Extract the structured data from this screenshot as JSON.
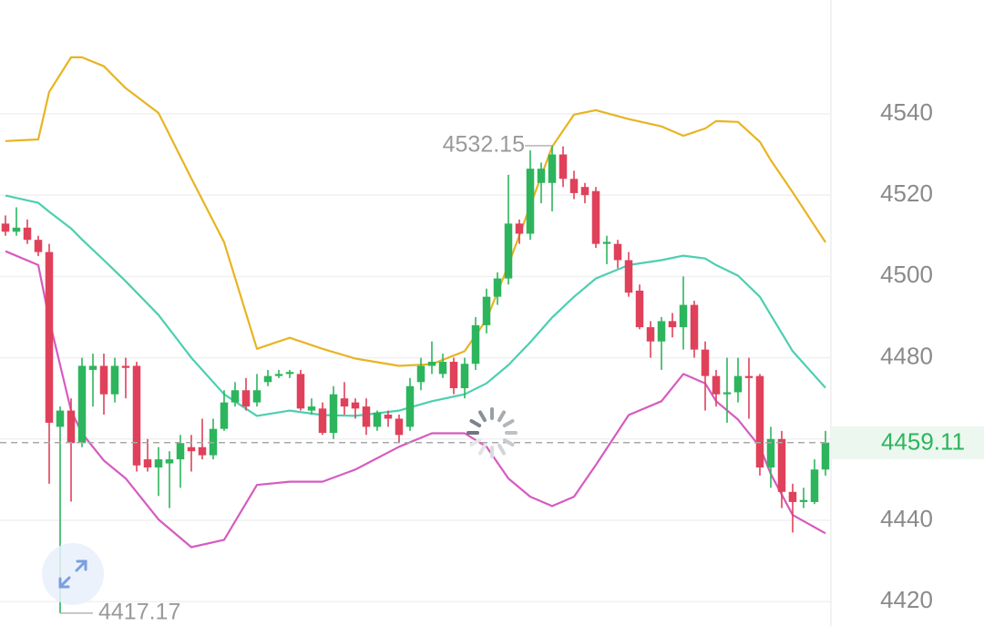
{
  "chart_data": {
    "type": "candlestick",
    "xlim": [
      -0.5,
      75.5
    ],
    "ylim": [
      4414,
      4568
    ],
    "yticks": [
      4420,
      4440,
      4460,
      4480,
      4500,
      4520,
      4540
    ],
    "grid": true,
    "up_color": "#2db55d",
    "down_color": "#e0415a",
    "open": [
      4513,
      4511,
      4512,
      4509,
      4506,
      4463,
      4467,
      4459,
      4477,
      4478,
      4471,
      4478,
      4478,
      4455,
      4453,
      4454,
      4455,
      4458,
      4458,
      4456,
      4462.5,
      4469,
      4472,
      4469,
      4474,
      4475.5,
      4476,
      4476,
      4467,
      4467.5,
      4461.5,
      4470,
      4469,
      4468,
      4463,
      4466,
      4465,
      4463,
      4474,
      4478,
      4476,
      4479,
      4472.5,
      4478.5,
      4488,
      4495,
      4499.5,
      4513,
      4510.5,
      4523,
      4523,
      4530,
      4524,
      4522,
      4521,
      4508,
      4508,
      4504,
      4496.5,
      4487.5,
      4484,
      4489,
      4487.5,
      4493,
      4482,
      4475.5,
      4471,
      4471.5,
      4475.5,
      4475.5,
      4453,
      4460,
      4447,
      4444.5,
      4444.5,
      4452.5
    ],
    "high": [
      4515,
      4517,
      4514,
      4510,
      4508,
      4468,
      4470,
      4480,
      4481,
      4481,
      4480,
      4480,
      4479,
      4460,
      4458,
      4457,
      4461,
      4461,
      4465,
      4465,
      4472,
      4474,
      4475,
      4476,
      4477,
      4477,
      4477,
      4477,
      4470,
      4469,
      4473,
      4474,
      4470,
      4470,
      4467,
      4467,
      4466,
      4475,
      4480,
      4484,
      4481,
      4480,
      4480,
      4490,
      4497,
      4501,
      4525,
      4514,
      4531,
      4528,
      4532.15,
      4532,
      4526,
      4523,
      4522,
      4510,
      4509,
      4506,
      4498,
      4489,
      4490,
      4491,
      4500,
      4494,
      4484,
      4477,
      4480,
      4480,
      4480,
      4476,
      4463,
      4462,
      4449,
      4448,
      4455,
      4462
    ],
    "low": [
      4510,
      4510,
      4508,
      4505,
      4449,
      4417.17,
      4444.6,
      4458,
      4468,
      4466,
      4469,
      4470,
      4452,
      4452,
      4446,
      4443,
      4448,
      4452,
      4455,
      4455,
      4462,
      4468,
      4467,
      4468,
      4473,
      4475,
      4475,
      4467,
      4466,
      4461,
      4460,
      4466,
      4465,
      4461,
      4462,
      4463,
      4459,
      4462,
      4472,
      4476,
      4475,
      4471,
      4470,
      4477,
      4486,
      4493,
      4498,
      4508,
      4509,
      4518,
      4516,
      4522,
      4519,
      4518,
      4507,
      4503,
      4502,
      4495,
      4487,
      4480,
      4477,
      4485,
      4482,
      4480,
      4467,
      4468,
      4464,
      4469,
      4465,
      4451,
      4448,
      4443,
      4437,
      4443,
      4444,
      4451
    ],
    "close": [
      4511,
      4512,
      4509,
      4506,
      4464,
      4467,
      4459,
      4478,
      4478,
      4471,
      4478,
      4477.5,
      4453.5,
      4453,
      4455,
      4455,
      4459,
      4457,
      4456,
      4462.5,
      4469,
      4472,
      4468,
      4472,
      4475.5,
      4476,
      4476.5,
      4467.5,
      4468,
      4461.5,
      4471,
      4468,
      4467.5,
      4463,
      4466.5,
      4465,
      4461,
      4473,
      4478,
      4479,
      4479,
      4472.5,
      4478.5,
      4488,
      4495,
      4499.5,
      4513,
      4510.5,
      4526.5,
      4526.5,
      4530,
      4524,
      4520.5,
      4520,
      4508,
      4508.5,
      4504,
      4496,
      4487.5,
      4484,
      4489,
      4487.5,
      4493,
      4482,
      4475.5,
      4471,
      4471.5,
      4475.5,
      4475,
      4453,
      4460,
      4447,
      4444.5,
      4445,
      4452.5,
      4459.11
    ],
    "bands": {
      "x": [
        0,
        3,
        4,
        6,
        7,
        9,
        11,
        14,
        17,
        20,
        23,
        26,
        29,
        32,
        36,
        39,
        42,
        44,
        46,
        48,
        50,
        52,
        54,
        57,
        60,
        62,
        64,
        65,
        67,
        69,
        70,
        72,
        75
      ],
      "series": [
        {
          "color": "#e8b422",
          "values": [
            4533.3,
            4533.7,
            4545.4,
            4553.9,
            4553.9,
            4551.7,
            4546.3,
            4540.2,
            4524.1,
            4508.4,
            4482.2,
            4484.9,
            4482.2,
            4479.8,
            4478.0,
            4478.4,
            4481.6,
            4489.4,
            4502.8,
            4517.4,
            4531.9,
            4539.8,
            4540.9,
            4538.7,
            4536.9,
            4534.6,
            4536.4,
            4538.2,
            4538.0,
            4533.1,
            4528.6,
            4520.7,
            4508.4
          ]
        },
        {
          "color": "#4ccfb0",
          "values": [
            4519.9,
            4518.1,
            4515.9,
            4511.8,
            4509.1,
            4504.0,
            4498.8,
            4490.5,
            4480.0,
            4471.0,
            4465.7,
            4467.0,
            4465.9,
            4465.7,
            4467.0,
            4469.3,
            4471.0,
            4473.7,
            4478.2,
            4483.8,
            4489.9,
            4495.0,
            4499.5,
            4502.8,
            4504.0,
            4505.1,
            4504.4,
            4502.8,
            4500.2,
            4495.0,
            4490.5,
            4481.6,
            4472.6
          ]
        },
        {
          "color": "#d65bc0",
          "values": [
            4506.2,
            4502.8,
            4489.4,
            4467.0,
            4461.4,
            4454.7,
            4450.3,
            4440.2,
            4433.4,
            4435.2,
            4448.7,
            4449.5,
            4449.5,
            4452.5,
            4458.1,
            4461.4,
            4461.4,
            4458.1,
            4450.3,
            4445.8,
            4443.5,
            4445.8,
            4453.6,
            4465.9,
            4469.3,
            4476.0,
            4473.7,
            4469.3,
            4464.8,
            4458.1,
            4451.4,
            4441.3,
            4436.8
          ]
        }
      ]
    }
  }
}
